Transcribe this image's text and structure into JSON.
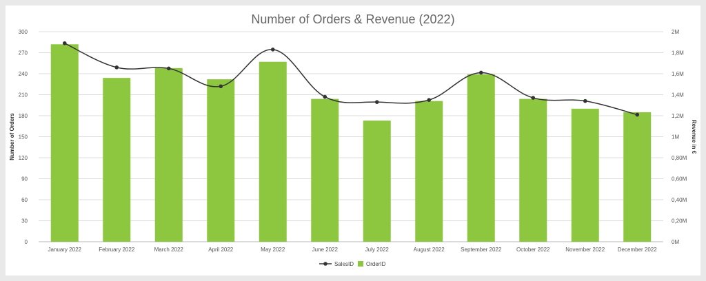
{
  "chart_data": {
    "type": "bar",
    "title": "Number of Orders & Revenue (2022)",
    "categories": [
      "January 2022",
      "February 2022",
      "March 2022",
      "April 2022",
      "May 2022",
      "June 2022",
      "July 2022",
      "August 2022",
      "September 2022",
      "October 2022",
      "November 2022",
      "December 2022"
    ],
    "series": [
      {
        "name": "OrderID",
        "type": "bar",
        "axis": "left",
        "color": "#8dc63f",
        "values": [
          282,
          234,
          248,
          232,
          257,
          204,
          173,
          201,
          239,
          204,
          190,
          185
        ]
      },
      {
        "name": "SalesID",
        "type": "line",
        "axis": "right",
        "color": "#333333",
        "values": [
          1.89,
          1.66,
          1.65,
          1.48,
          1.83,
          1.38,
          1.33,
          1.35,
          1.61,
          1.37,
          1.34,
          1.21
        ]
      }
    ],
    "ylabel": "Number of Orders",
    "ylim": [
      0,
      300
    ],
    "yticks": [
      "0",
      "30",
      "60",
      "90",
      "120",
      "150",
      "180",
      "210",
      "240",
      "270",
      "300"
    ],
    "y2label": "Revenue in €",
    "y2lim": [
      0,
      2
    ],
    "y2ticks": [
      "0M",
      "0,20M",
      "0,40M",
      "0,60M",
      "0,80M",
      "1M",
      "1,2M",
      "1,4M",
      "1,6M",
      "1,8M",
      "2M"
    ],
    "grid": true,
    "legend_position": "bottom-center"
  }
}
